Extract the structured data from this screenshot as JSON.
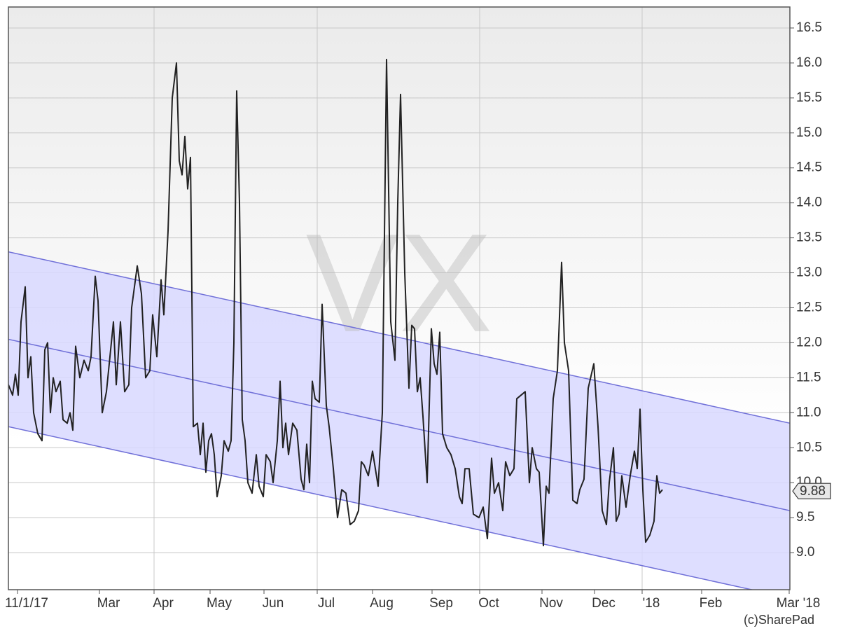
{
  "chart_data": {
    "type": "line",
    "watermark": "VX",
    "credit": "(c)SharePad",
    "xlim": [
      0,
      1116
    ],
    "xticks": [
      {
        "value": 13,
        "label": "11/1/17"
      },
      {
        "value": 130,
        "label": "Mar"
      },
      {
        "value": 208,
        "label": "Apr"
      },
      {
        "value": 288,
        "label": "May"
      },
      {
        "value": 365,
        "label": "Jun"
      },
      {
        "value": 441,
        "label": "Jul"
      },
      {
        "value": 520,
        "label": "Aug"
      },
      {
        "value": 605,
        "label": "Sep"
      },
      {
        "value": 673,
        "label": "Oct"
      },
      {
        "value": 762,
        "label": "Nov"
      },
      {
        "value": 837,
        "label": "Dec"
      },
      {
        "value": 905,
        "label": "'18"
      },
      {
        "value": 990,
        "label": "Feb"
      },
      {
        "value": 1115,
        "label": "Mar '18"
      }
    ],
    "xgrid": [
      208,
      441,
      673,
      905
    ],
    "ylim": [
      8.47,
      16.8
    ],
    "yticks": [
      {
        "value": 9,
        "label": "9.0"
      },
      9.5,
      {
        "value": 10,
        "label": "10.0"
      },
      10.5,
      {
        "value": 11,
        "label": "11.0"
      },
      11.5,
      {
        "value": 12,
        "label": "12.0"
      },
      12.5,
      {
        "value": 13,
        "label": "13.0"
      },
      13.5,
      {
        "value": 14,
        "label": "14.0"
      },
      14.5,
      {
        "value": 15,
        "label": "15.0"
      },
      15.5,
      {
        "value": 16,
        "label": "16.0"
      },
      16.5
    ],
    "grid": true,
    "trend": {
      "color": "#7070d8",
      "center": [
        12.05,
        9.6
      ],
      "upper": [
        13.3,
        10.85
      ],
      "lower": [
        10.8,
        8.35
      ],
      "fill": "#d8d8ff"
    },
    "last_value": 9.88,
    "series": [
      {
        "name": "VX",
        "color": "#222222",
        "x": [
          0,
          6,
          10,
          14,
          18,
          24,
          28,
          32,
          36,
          42,
          48,
          52,
          56,
          60,
          64,
          68,
          74,
          78,
          84,
          88,
          92,
          96,
          102,
          108,
          114,
          118,
          124,
          128,
          134,
          140,
          146,
          150,
          154,
          160,
          166,
          172,
          176,
          184,
          190,
          196,
          202,
          206,
          212,
          218,
          222,
          228,
          234,
          240,
          244,
          248,
          252,
          256,
          260,
          264,
          270,
          274,
          278,
          282,
          286,
          290,
          294,
          298,
          304,
          308,
          314,
          318,
          322,
          326,
          330,
          334,
          338,
          342,
          348,
          354,
          358,
          364,
          368,
          374,
          378,
          384,
          388,
          392,
          396,
          400,
          406,
          412,
          418,
          422,
          426,
          430,
          434,
          438,
          444,
          448,
          454,
          458,
          464,
          470,
          476,
          482,
          488,
          494,
          500,
          504,
          508,
          514,
          520,
          528,
          534,
          540,
          546,
          552,
          556,
          560,
          566,
          572,
          576,
          580,
          584,
          588,
          592,
          598,
          604,
          608,
          612,
          616,
          620,
          626,
          632,
          638,
          644,
          648,
          652,
          658,
          664,
          672,
          678,
          684,
          690,
          694,
          700,
          706,
          710,
          716,
          722,
          726,
          732,
          738,
          744,
          748,
          754,
          758,
          764,
          768,
          772,
          778,
          784,
          790,
          794,
          800,
          806,
          812,
          816,
          822,
          828,
          836,
          842,
          848,
          854,
          858,
          864,
          868,
          872,
          876,
          882,
          888,
          894,
          898,
          902,
          906,
          910,
          916,
          922,
          926,
          930,
          934
        ],
        "values": [
          11.4,
          11.25,
          11.55,
          11.25,
          12.3,
          12.8,
          11.5,
          11.8,
          11.0,
          10.7,
          10.6,
          11.9,
          12.0,
          11.0,
          11.5,
          11.3,
          11.45,
          10.9,
          10.85,
          11.0,
          10.75,
          11.95,
          11.5,
          11.75,
          11.6,
          11.8,
          12.95,
          12.6,
          11.0,
          11.3,
          11.9,
          12.3,
          11.4,
          12.3,
          11.3,
          11.4,
          12.5,
          13.1,
          12.7,
          11.5,
          11.6,
          12.4,
          11.8,
          12.9,
          12.4,
          13.6,
          15.5,
          16.0,
          14.6,
          14.4,
          14.95,
          14.2,
          14.65,
          10.8,
          10.85,
          10.4,
          10.85,
          10.15,
          10.6,
          10.7,
          10.4,
          9.8,
          10.1,
          10.6,
          10.45,
          10.6,
          12.0,
          15.6,
          14.0,
          10.9,
          10.6,
          10.0,
          9.85,
          10.4,
          9.95,
          9.8,
          10.4,
          10.3,
          10.0,
          10.6,
          11.45,
          10.5,
          10.85,
          10.4,
          10.85,
          10.75,
          10.05,
          9.9,
          10.55,
          10.0,
          11.45,
          11.2,
          11.15,
          12.55,
          11.1,
          10.8,
          10.2,
          9.5,
          9.9,
          9.85,
          9.4,
          9.45,
          9.6,
          10.3,
          10.25,
          10.1,
          10.45,
          9.95,
          11.0,
          16.05,
          12.3,
          11.75,
          14.0,
          15.55,
          13.0,
          11.35,
          12.25,
          12.2,
          11.3,
          11.5,
          10.95,
          10.0,
          12.2,
          11.7,
          11.55,
          12.15,
          10.7,
          10.5,
          10.4,
          10.2,
          9.8,
          9.7,
          10.2,
          10.2,
          9.55,
          9.5,
          9.65,
          9.2,
          10.35,
          9.85,
          10.0,
          9.6,
          10.3,
          10.1,
          10.2,
          11.2,
          11.25,
          11.3,
          10.0,
          10.5,
          10.2,
          10.15,
          9.1,
          9.95,
          9.85,
          11.2,
          11.6,
          13.15,
          12.0,
          11.6,
          9.75,
          9.7,
          9.9,
          10.05,
          11.35,
          11.7,
          10.8,
          9.6,
          9.4,
          10.0,
          10.5,
          9.45,
          9.55,
          10.1,
          9.65,
          10.1,
          10.45,
          10.2,
          11.05,
          9.9,
          9.15,
          9.25,
          9.45,
          10.1,
          9.85,
          9.9
        ]
      }
    ]
  }
}
